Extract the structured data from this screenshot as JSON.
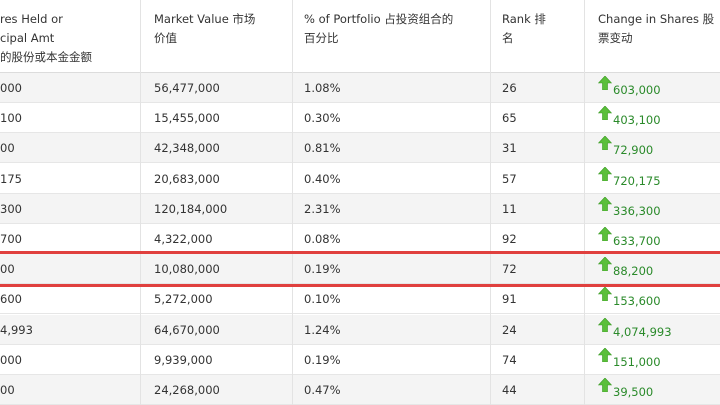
{
  "table": {
    "headers": {
      "shares": "res Held or\ncipal Amt\n的股份或本金金额",
      "market_value": "Market Value  市场\n价值",
      "pct_portfolio": "% of Portfolio  占投资组合的\n百分比",
      "rank": "Rank  排\n名",
      "change": "Change in Shares  股\n票变动"
    },
    "rows": [
      {
        "shares": "000",
        "market_value": "56,477,000",
        "pct": "1.08%",
        "rank": "26",
        "change": "603,000"
      },
      {
        "shares": "100",
        "market_value": "15,455,000",
        "pct": "0.30%",
        "rank": "65",
        "change": "403,100"
      },
      {
        "shares": "00",
        "market_value": "42,348,000",
        "pct": "0.81%",
        "rank": "31",
        "change": "72,900"
      },
      {
        "shares": "175",
        "market_value": "20,683,000",
        "pct": "0.40%",
        "rank": "57",
        "change": "720,175"
      },
      {
        "shares": "300",
        "market_value": "120,184,000",
        "pct": "2.31%",
        "rank": "11",
        "change": "336,300"
      },
      {
        "shares": "700",
        "market_value": "4,322,000",
        "pct": "0.08%",
        "rank": "92",
        "change": "633,700"
      },
      {
        "shares": "00",
        "market_value": "10,080,000",
        "pct": "0.19%",
        "rank": "72",
        "change": "88,200"
      },
      {
        "shares": "600",
        "market_value": "5,272,000",
        "pct": "0.10%",
        "rank": "91",
        "change": "153,600"
      },
      {
        "shares": "4,993",
        "market_value": "64,670,000",
        "pct": "1.24%",
        "rank": "24",
        "change": "4,074,993"
      },
      {
        "shares": "000",
        "market_value": "9,939,000",
        "pct": "0.19%",
        "rank": "74",
        "change": "151,000"
      },
      {
        "shares": "00",
        "market_value": "24,268,000",
        "pct": "0.47%",
        "rank": "44",
        "change": "39,500"
      }
    ],
    "highlighted_row": 7
  },
  "colors": {
    "change_positive": "#2a8a2a",
    "arrow_up": "#5bbf3a",
    "highlight_border": "#e0403e",
    "alt_row": "#f4f4f4"
  },
  "icons": {
    "change_arrow": "green-up-arrow-icon"
  }
}
